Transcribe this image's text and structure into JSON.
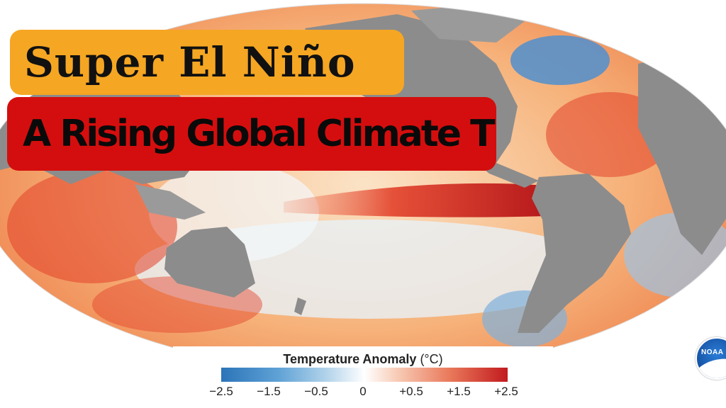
{
  "title": "Super El Niño",
  "subtitle": "A Rising Global Climate Threat",
  "legend": {
    "title_bold": "Temperature Anomaly",
    "title_unit": " (°C)",
    "ticks": [
      "−2.5",
      "−1.5",
      "−0.5",
      "0",
      "+0.5",
      "+1.5",
      "+2.5"
    ],
    "colors": [
      "#2b74b8",
      "#ffffff",
      "#c21a1e"
    ]
  },
  "logo": {
    "text": "NOAA",
    "icon": "noaa-logo-icon"
  },
  "map": {
    "land_color": "#8c8c8c",
    "warm_color": "#e2412a",
    "cool_color": "#6fa8dc"
  }
}
